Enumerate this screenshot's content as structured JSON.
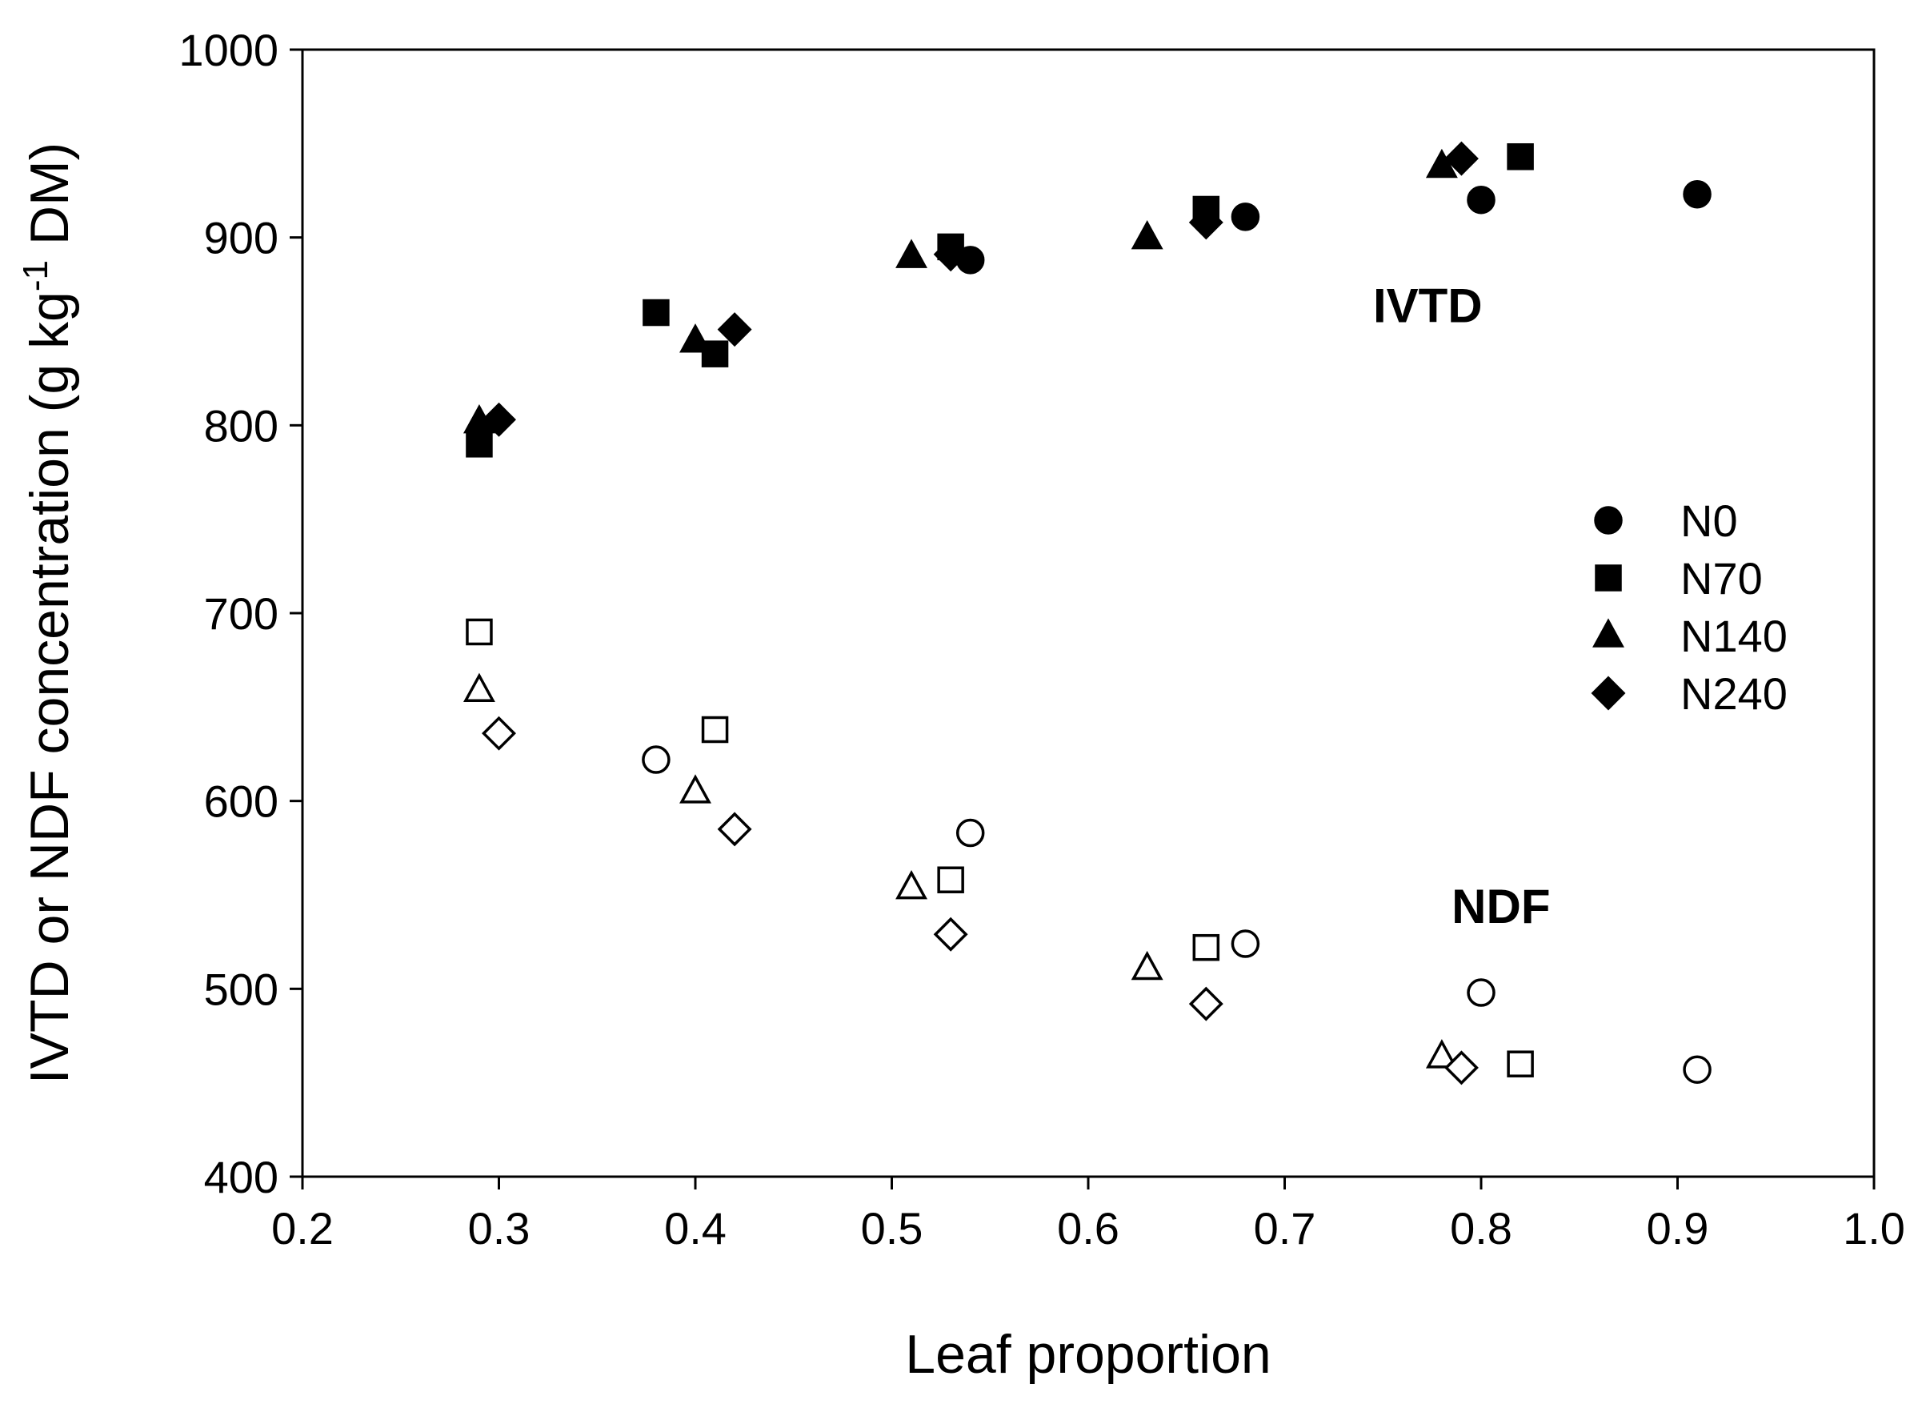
{
  "chart_data": {
    "type": "scatter",
    "title": "",
    "xlabel": "Leaf proportion",
    "ylabel_main": "IVTD or NDF concentration (g kg",
    "ylabel_sup": "-1",
    "ylabel_tail": " DM)",
    "xlim": [
      0.2,
      1.0
    ],
    "ylim": [
      400,
      1000
    ],
    "xticks": [
      0.2,
      0.3,
      0.4,
      0.5,
      0.6,
      0.7,
      0.8,
      0.9,
      1.0
    ],
    "xtick_labels": [
      "0.2",
      "0.3",
      "0.4",
      "0.5",
      "0.6",
      "0.7",
      "0.8",
      "0.9",
      "1.0"
    ],
    "yticks": [
      400,
      500,
      600,
      700,
      800,
      900,
      1000
    ],
    "ytick_labels": [
      "400",
      "500",
      "600",
      "700",
      "800",
      "900",
      "1000"
    ],
    "legend_position": "right",
    "annotations": [
      {
        "text": "IVTD",
        "x": 0.745,
        "y": 855
      },
      {
        "text": "NDF",
        "x": 0.785,
        "y": 535
      }
    ],
    "series": [
      {
        "name": "N0",
        "marker": "circle",
        "x": [
          0.54,
          0.68,
          0.8,
          0.91
        ],
        "ivtd": [
          888,
          911,
          920,
          923
        ],
        "ndf_x": [
          0.38,
          0.54,
          0.68,
          0.8,
          0.91
        ],
        "ndf": [
          622,
          583,
          524,
          498,
          457
        ]
      },
      {
        "name": "N70",
        "marker": "square",
        "x": [
          0.29,
          0.38,
          0.41,
          0.53,
          0.66,
          0.82
        ],
        "ivtd": [
          790,
          860,
          838,
          895,
          915,
          943
        ],
        "ndf_x": [
          0.29,
          0.41,
          0.53,
          0.66,
          0.82
        ],
        "ndf": [
          690,
          638,
          558,
          522,
          460
        ]
      },
      {
        "name": "N140",
        "marker": "triangle",
        "x": [
          0.29,
          0.4,
          0.51,
          0.63,
          0.78
        ],
        "ivtd": [
          802,
          845,
          890,
          900,
          938
        ],
        "ndf_x": [
          0.29,
          0.4,
          0.51,
          0.63,
          0.78
        ],
        "ndf": [
          659,
          605,
          554,
          511,
          464
        ]
      },
      {
        "name": "N240",
        "marker": "diamond",
        "x": [
          0.3,
          0.42,
          0.53,
          0.66,
          0.79
        ],
        "ivtd": [
          803,
          851,
          891,
          908,
          942
        ],
        "ndf_x": [
          0.3,
          0.42,
          0.53,
          0.66,
          0.79
        ],
        "ndf": [
          636,
          585,
          529,
          492,
          458
        ]
      }
    ],
    "colors": {
      "marker": "#000000",
      "background": "#ffffff"
    }
  }
}
